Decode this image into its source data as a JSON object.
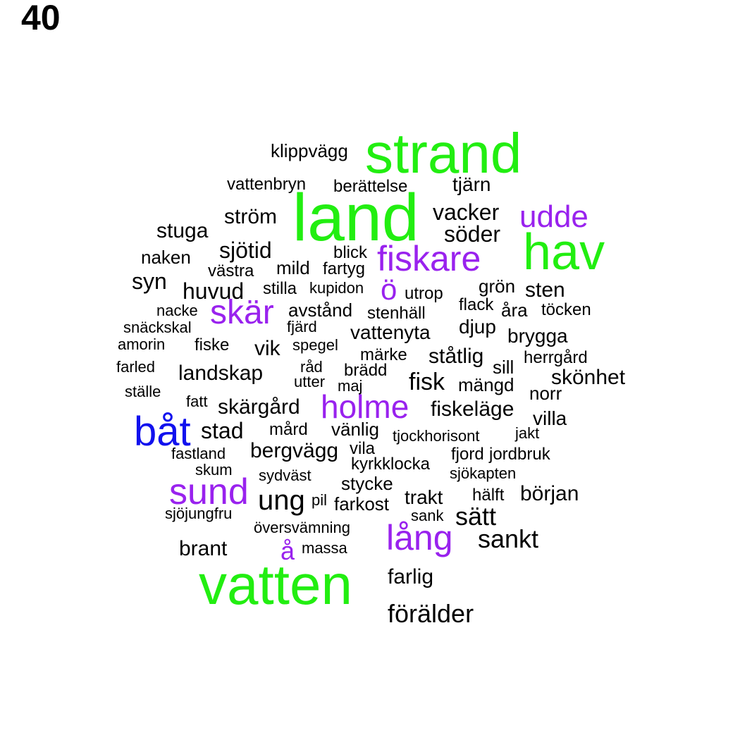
{
  "page_label": "40",
  "palette": {
    "green": "#22ee11",
    "purple": "#9922ee",
    "blue": "#1111ee",
    "black": "#000000"
  },
  "words": [
    {
      "text": "strand",
      "color": "green"
    },
    {
      "text": "land",
      "color": "green"
    },
    {
      "text": "hav",
      "color": "green"
    },
    {
      "text": "vatten",
      "color": "green"
    },
    {
      "text": "udde",
      "color": "purple"
    },
    {
      "text": "fiskare",
      "color": "purple"
    },
    {
      "text": "ö",
      "color": "purple"
    },
    {
      "text": "skär",
      "color": "purple"
    },
    {
      "text": "holme",
      "color": "purple"
    },
    {
      "text": "sund",
      "color": "purple"
    },
    {
      "text": "lång",
      "color": "purple"
    },
    {
      "text": "å",
      "color": "purple"
    },
    {
      "text": "båt",
      "color": "blue"
    },
    {
      "text": "klippvägg",
      "color": "black"
    },
    {
      "text": "vattenbryn",
      "color": "black"
    },
    {
      "text": "berättelse",
      "color": "black"
    },
    {
      "text": "tjärn",
      "color": "black"
    },
    {
      "text": "ström",
      "color": "black"
    },
    {
      "text": "vacker",
      "color": "black"
    },
    {
      "text": "stuga",
      "color": "black"
    },
    {
      "text": "söder",
      "color": "black"
    },
    {
      "text": "sjötid",
      "color": "black"
    },
    {
      "text": "naken",
      "color": "black"
    },
    {
      "text": "blick",
      "color": "black"
    },
    {
      "text": "västra",
      "color": "black"
    },
    {
      "text": "mild",
      "color": "black"
    },
    {
      "text": "fartyg",
      "color": "black"
    },
    {
      "text": "syn",
      "color": "black"
    },
    {
      "text": "huvud",
      "color": "black"
    },
    {
      "text": "stilla",
      "color": "black"
    },
    {
      "text": "kupidon",
      "color": "black"
    },
    {
      "text": "utrop",
      "color": "black"
    },
    {
      "text": "grön",
      "color": "black"
    },
    {
      "text": "sten",
      "color": "black"
    },
    {
      "text": "nacke",
      "color": "black"
    },
    {
      "text": "avstånd",
      "color": "black"
    },
    {
      "text": "stenhäll",
      "color": "black"
    },
    {
      "text": "flack",
      "color": "black"
    },
    {
      "text": "åra",
      "color": "black"
    },
    {
      "text": "töcken",
      "color": "black"
    },
    {
      "text": "snäckskal",
      "color": "black"
    },
    {
      "text": "fjärd",
      "color": "black"
    },
    {
      "text": "vattenyta",
      "color": "black"
    },
    {
      "text": "djup",
      "color": "black"
    },
    {
      "text": "brygga",
      "color": "black"
    },
    {
      "text": "amorin",
      "color": "black"
    },
    {
      "text": "fiske",
      "color": "black"
    },
    {
      "text": "vik",
      "color": "black"
    },
    {
      "text": "spegel",
      "color": "black"
    },
    {
      "text": "märke",
      "color": "black"
    },
    {
      "text": "ståtlig",
      "color": "black"
    },
    {
      "text": "herrgård",
      "color": "black"
    },
    {
      "text": "farled",
      "color": "black"
    },
    {
      "text": "landskap",
      "color": "black"
    },
    {
      "text": "råd",
      "color": "black"
    },
    {
      "text": "brädd",
      "color": "black"
    },
    {
      "text": "sill",
      "color": "black"
    },
    {
      "text": "skönhet",
      "color": "black"
    },
    {
      "text": "utter",
      "color": "black"
    },
    {
      "text": "maj",
      "color": "black"
    },
    {
      "text": "fisk",
      "color": "black"
    },
    {
      "text": "mängd",
      "color": "black"
    },
    {
      "text": "ställe",
      "color": "black"
    },
    {
      "text": "norr",
      "color": "black"
    },
    {
      "text": "fatt",
      "color": "black"
    },
    {
      "text": "skärgård",
      "color": "black"
    },
    {
      "text": "fiskeläge",
      "color": "black"
    },
    {
      "text": "villa",
      "color": "black"
    },
    {
      "text": "stad",
      "color": "black"
    },
    {
      "text": "mård",
      "color": "black"
    },
    {
      "text": "vänlig",
      "color": "black"
    },
    {
      "text": "tjockhorisont",
      "color": "black"
    },
    {
      "text": "jakt",
      "color": "black"
    },
    {
      "text": "fastland",
      "color": "black"
    },
    {
      "text": "bergvägg",
      "color": "black"
    },
    {
      "text": "vila",
      "color": "black"
    },
    {
      "text": "fjord",
      "color": "black"
    },
    {
      "text": "jordbruk",
      "color": "black"
    },
    {
      "text": "skum",
      "color": "black"
    },
    {
      "text": "kyrkklocka",
      "color": "black"
    },
    {
      "text": "sydväst",
      "color": "black"
    },
    {
      "text": "sjökapten",
      "color": "black"
    },
    {
      "text": "stycke",
      "color": "black"
    },
    {
      "text": "början",
      "color": "black"
    },
    {
      "text": "ung",
      "color": "black"
    },
    {
      "text": "pil",
      "color": "black"
    },
    {
      "text": "trakt",
      "color": "black"
    },
    {
      "text": "hälft",
      "color": "black"
    },
    {
      "text": "farkost",
      "color": "black"
    },
    {
      "text": "sjöjungfru",
      "color": "black"
    },
    {
      "text": "sank",
      "color": "black"
    },
    {
      "text": "sätt",
      "color": "black"
    },
    {
      "text": "översvämning",
      "color": "black"
    },
    {
      "text": "sankt",
      "color": "black"
    },
    {
      "text": "brant",
      "color": "black"
    },
    {
      "text": "massa",
      "color": "black"
    },
    {
      "text": "farlig",
      "color": "black"
    },
    {
      "text": "förälder",
      "color": "black"
    }
  ]
}
